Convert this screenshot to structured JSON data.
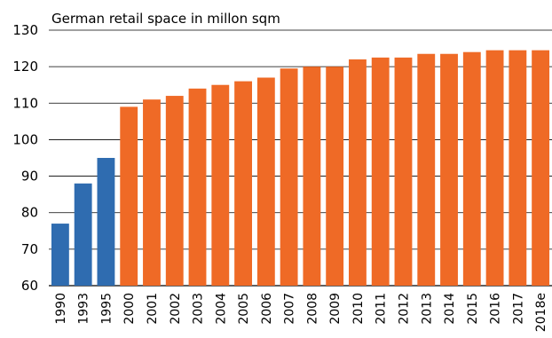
{
  "chart_data": {
    "type": "bar",
    "title": "German retail space in millon sqm",
    "xlabel": "",
    "ylabel": "",
    "ylim": [
      60,
      130
    ],
    "yticks": [
      60,
      70,
      80,
      90,
      100,
      110,
      120,
      130
    ],
    "grid": true,
    "categories": [
      "1990",
      "1993",
      "1995",
      "2000",
      "2001",
      "2002",
      "2003",
      "2004",
      "2005",
      "2006",
      "2007",
      "2008",
      "2009",
      "2010",
      "2011",
      "2012",
      "2013",
      "2014",
      "2015",
      "2016",
      "2017",
      "2018e"
    ],
    "values": [
      77,
      88,
      95,
      109,
      111,
      112,
      114,
      115,
      116,
      117,
      119.5,
      120,
      120,
      122,
      122.5,
      122.5,
      123.5,
      123.5,
      124,
      124.5,
      124.5,
      124.5
    ],
    "colors": {
      "early": "#2f6cb0",
      "recent": "#ef6a26",
      "grid": "#000000"
    },
    "color_split_after_index": 2
  }
}
